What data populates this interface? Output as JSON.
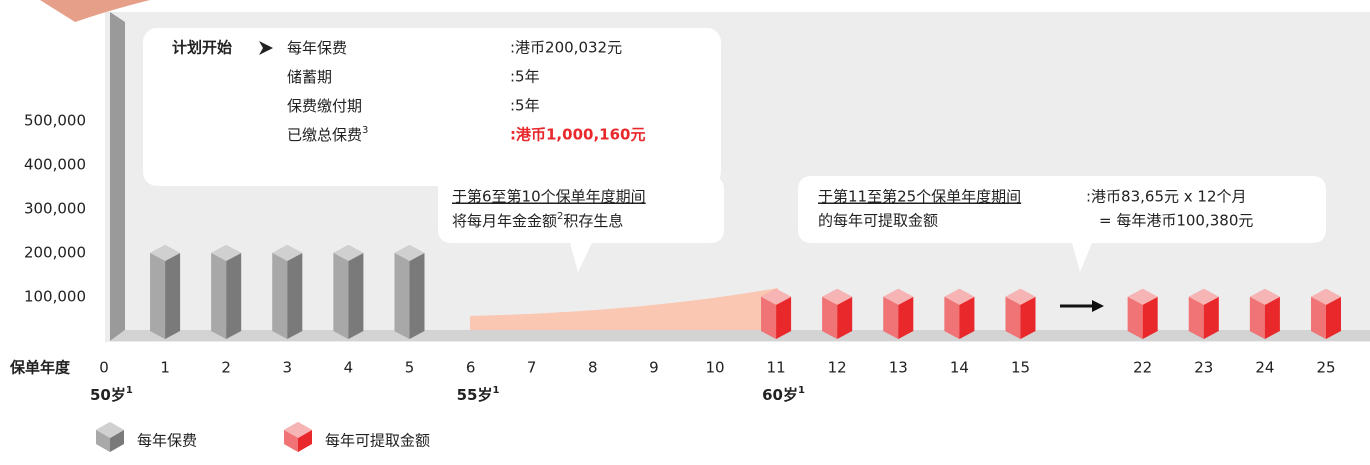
{
  "chart_data": {
    "type": "bar",
    "x_label": "保单年度",
    "categories": [
      "0",
      "1",
      "2",
      "3",
      "4",
      "5",
      "6",
      "7",
      "8",
      "9",
      "10",
      "11",
      "12",
      "13",
      "14",
      "15",
      null,
      "22",
      "23",
      "24",
      "25"
    ],
    "series": [
      {
        "name": "每年保费",
        "color": "#7a7a7a",
        "values": [
          null,
          200032,
          200032,
          200032,
          200032,
          200032,
          null,
          null,
          null,
          null,
          null,
          null,
          null,
          null,
          null,
          null,
          null,
          null,
          null,
          null,
          null
        ]
      },
      {
        "name": "每年可提取金额",
        "color": "#e8282b",
        "values": [
          null,
          null,
          null,
          null,
          null,
          null,
          null,
          null,
          null,
          null,
          null,
          100380,
          100380,
          100380,
          100380,
          100380,
          null,
          100380,
          100380,
          100380,
          100380
        ]
      }
    ],
    "ylim": [
      0,
      700000
    ],
    "yticks": [
      {
        "value": 100000,
        "label": "100,000"
      },
      {
        "value": 200000,
        "label": "200,000"
      },
      {
        "value": 300000,
        "label": "300,000"
      },
      {
        "value": 400000,
        "label": "400,000"
      },
      {
        "value": 500000,
        "label": "500,000"
      }
    ],
    "ages": [
      {
        "text": "50岁",
        "sup": "1"
      },
      {
        "text": "55岁",
        "sup": "1"
      },
      {
        "text": "60岁",
        "sup": "1"
      }
    ],
    "plan_box": {
      "heading": "计划开始",
      "rows": [
        [
          "每年保费",
          ":港币200,032元"
        ],
        [
          "储蓄期",
          ":5年"
        ],
        [
          "保费缴付期",
          ":5年"
        ],
        [
          "已缴总保费",
          ":港币1,000,160元"
        ]
      ],
      "total_sup": "3"
    },
    "accumulation_note": {
      "line1": "于第6至第10个保单年度期间",
      "line2a": "将每月年金金额",
      "sup": "2",
      "line2b": "积存生息"
    },
    "withdrawal_note": {
      "line1": "于第11至第25个保单年度期间",
      "line2": "的每年可提取金额",
      "amount1": ":港币83,65元 x 12个月",
      "amount2": "= 每年港币100,380元"
    }
  }
}
